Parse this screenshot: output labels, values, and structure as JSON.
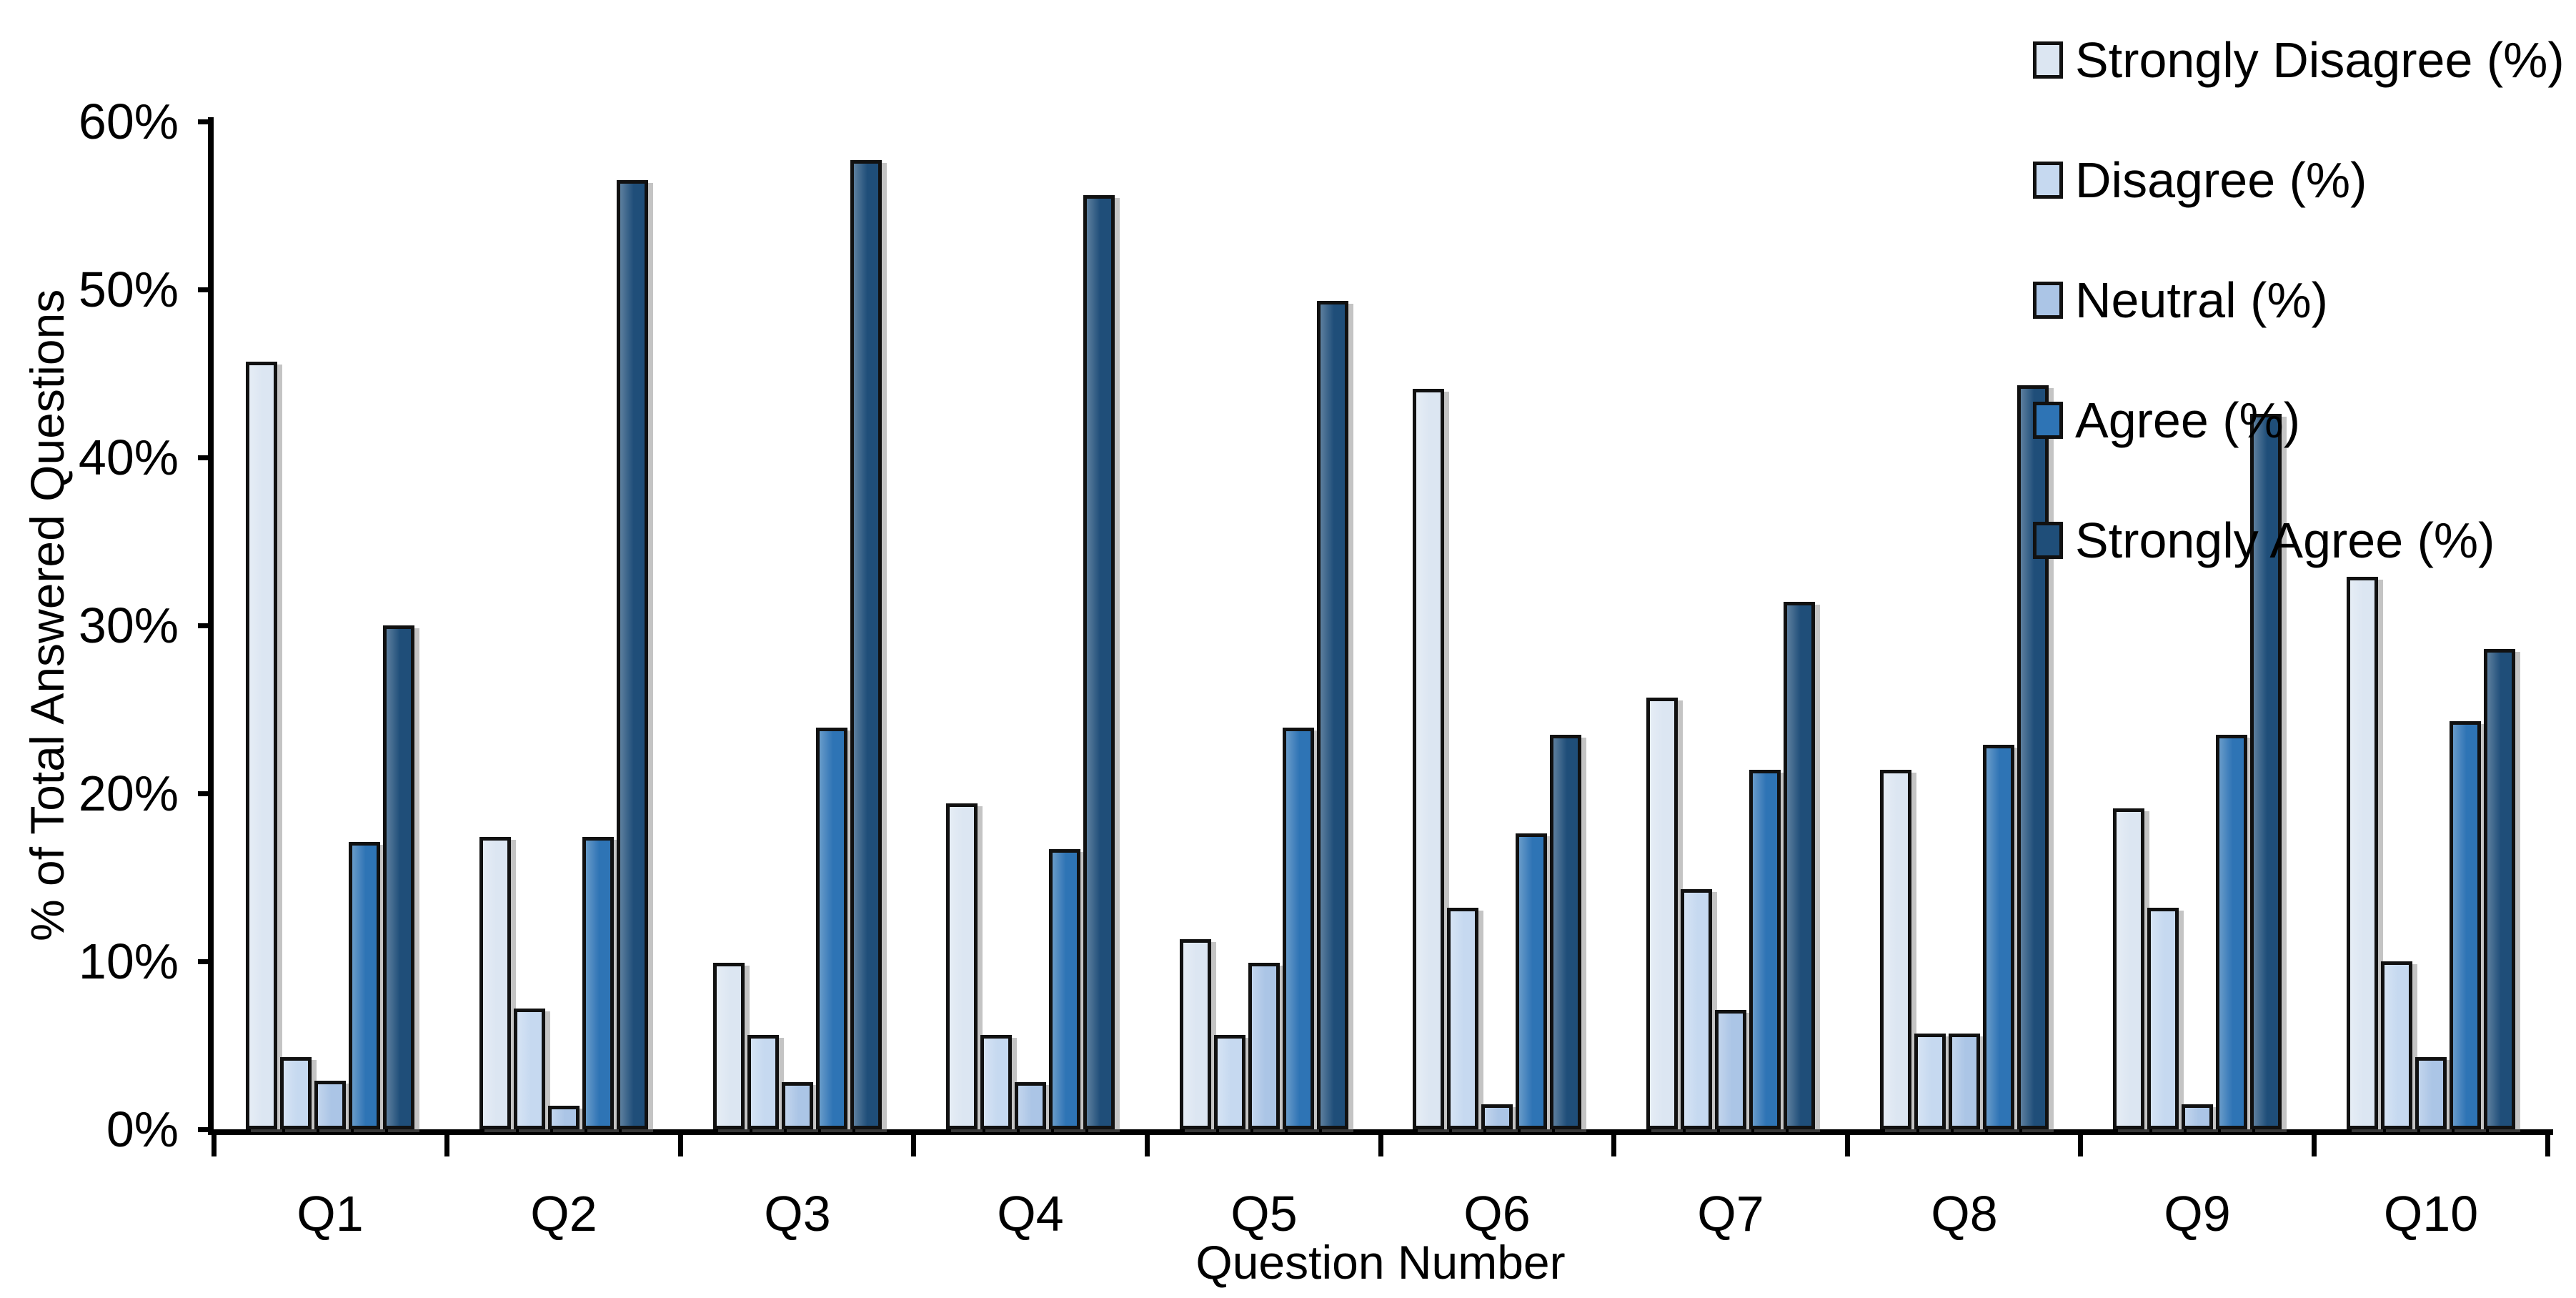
{
  "chart_data": {
    "type": "bar",
    "title": "",
    "xlabel": "Question Number",
    "ylabel": "% of Total Answered Questions",
    "ylim": [
      0,
      60
    ],
    "y_tick_step": 10,
    "y_tick_labels": [
      "0%",
      "10%",
      "20%",
      "30%",
      "40%",
      "50%",
      "60%"
    ],
    "grid": false,
    "legend_position": "top-right",
    "categories": [
      "Q1",
      "Q2",
      "Q3",
      "Q4",
      "Q5",
      "Q6",
      "Q7",
      "Q8",
      "Q9",
      "Q10"
    ],
    "series": [
      {
        "name": "Strongly Disagree (%)",
        "color": "#dce6f2",
        "values": [
          45.7,
          17.4,
          9.9,
          19.4,
          11.3,
          44.1,
          25.7,
          21.4,
          19.1,
          32.9
        ]
      },
      {
        "name": "Disagree (%)",
        "color": "#c6d9f0",
        "values": [
          4.3,
          7.2,
          5.6,
          5.6,
          5.6,
          13.2,
          14.3,
          5.7,
          13.2,
          10.0
        ]
      },
      {
        "name": "Neutral (%)",
        "color": "#abc5e6",
        "values": [
          2.9,
          1.4,
          2.8,
          2.8,
          9.9,
          1.5,
          7.1,
          5.7,
          1.5,
          4.3
        ]
      },
      {
        "name": "Agree (%)",
        "color": "#2e74b5",
        "values": [
          17.1,
          17.4,
          23.9,
          16.7,
          23.9,
          17.6,
          21.4,
          22.9,
          23.5,
          24.3
        ]
      },
      {
        "name": "Strongly Agree (%)",
        "color": "#1f4e79",
        "values": [
          30.0,
          56.5,
          57.7,
          55.6,
          49.3,
          23.5,
          31.4,
          44.3,
          42.6,
          28.6
        ]
      }
    ],
    "colors": {
      "outline": "#111111",
      "axis": "#000000",
      "text": "#000000",
      "background": "#ffffff"
    }
  }
}
